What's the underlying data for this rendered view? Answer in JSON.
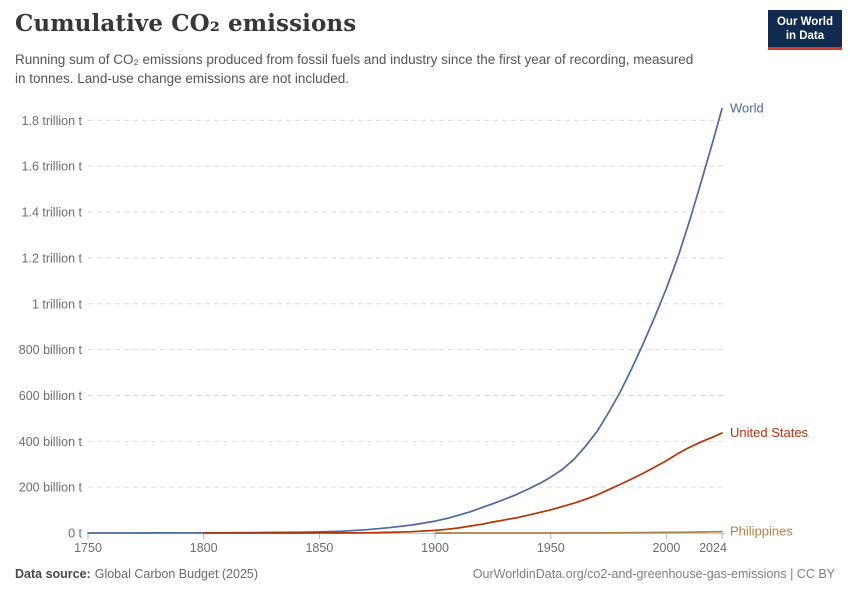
{
  "header": {
    "title": "Cumulative CO₂ emissions",
    "subtitle": "Running sum of CO₂ emissions produced from fossil fuels and industry since the first year of recording, measured in tonnes. Land-use change emissions are not included."
  },
  "logo": {
    "line1": "Our World",
    "line2": "in Data"
  },
  "footer": {
    "source_label": "Data source:",
    "source_text": "Global Carbon Budget (2025)",
    "attribution": "OurWorldinData.org/co2-and-greenhouse-gas-emissions | CC BY"
  },
  "chart_data": {
    "type": "line",
    "title": "Cumulative CO₂ emissions",
    "unit": "tonnes (values stored as billions of tonnes)",
    "xlim": [
      1750,
      2024
    ],
    "ylim_billion_t": [
      0,
      1900
    ],
    "grid": "dashed-horizontal",
    "legend_position": "end-of-line-labels",
    "axis_color": "#c8c8c8",
    "gridline_color": "#dcdcdc",
    "tick_label_color": "#6e6e6e",
    "x_ticks": [
      {
        "year": 1750,
        "label": "1750"
      },
      {
        "year": 1800,
        "label": "1800"
      },
      {
        "year": 1850,
        "label": "1850"
      },
      {
        "year": 1900,
        "label": "1900"
      },
      {
        "year": 1950,
        "label": "1950"
      },
      {
        "year": 2000,
        "label": "2000"
      },
      {
        "year": 2024,
        "label": "2024"
      }
    ],
    "y_ticks": [
      {
        "value_billion_t": 0,
        "label": "0 t"
      },
      {
        "value_billion_t": 200,
        "label": "200 billion t"
      },
      {
        "value_billion_t": 400,
        "label": "400 billion t"
      },
      {
        "value_billion_t": 600,
        "label": "600 billion t"
      },
      {
        "value_billion_t": 800,
        "label": "800 billion t"
      },
      {
        "value_billion_t": 1000,
        "label": "1 trillion t"
      },
      {
        "value_billion_t": 1200,
        "label": "1.2 trillion t"
      },
      {
        "value_billion_t": 1400,
        "label": "1.4 trillion t"
      },
      {
        "value_billion_t": 1600,
        "label": "1.6 trillion t"
      },
      {
        "value_billion_t": 1800,
        "label": "1.8 trillion t"
      }
    ],
    "series": [
      {
        "name": "World",
        "color": "#4c6a9c",
        "points_year_billion_t": [
          [
            1750,
            0
          ],
          [
            1760,
            0.1
          ],
          [
            1770,
            0.2
          ],
          [
            1780,
            0.35
          ],
          [
            1790,
            0.55
          ],
          [
            1800,
            0.9
          ],
          [
            1810,
            1.3
          ],
          [
            1820,
            1.8
          ],
          [
            1830,
            2.6
          ],
          [
            1840,
            3.6
          ],
          [
            1850,
            5
          ],
          [
            1860,
            8
          ],
          [
            1870,
            14
          ],
          [
            1880,
            23
          ],
          [
            1890,
            35
          ],
          [
            1900,
            52
          ],
          [
            1905,
            63
          ],
          [
            1910,
            77
          ],
          [
            1915,
            92
          ],
          [
            1920,
            110
          ],
          [
            1925,
            128
          ],
          [
            1930,
            147
          ],
          [
            1935,
            167
          ],
          [
            1940,
            190
          ],
          [
            1945,
            215
          ],
          [
            1950,
            244
          ],
          [
            1955,
            277
          ],
          [
            1960,
            321
          ],
          [
            1965,
            378
          ],
          [
            1970,
            443
          ],
          [
            1975,
            525
          ],
          [
            1980,
            615
          ],
          [
            1985,
            718
          ],
          [
            1990,
            827
          ],
          [
            1995,
            944
          ],
          [
            2000,
            1068
          ],
          [
            2005,
            1205
          ],
          [
            2010,
            1362
          ],
          [
            2015,
            1532
          ],
          [
            2020,
            1705
          ],
          [
            2024,
            1851
          ]
        ]
      },
      {
        "name": "United States",
        "color": "#b13507",
        "points_year_billion_t": [
          [
            1800,
            0
          ],
          [
            1810,
            0.02
          ],
          [
            1820,
            0.05
          ],
          [
            1830,
            0.1
          ],
          [
            1840,
            0.16
          ],
          [
            1850,
            0.25
          ],
          [
            1860,
            0.5
          ],
          [
            1870,
            1
          ],
          [
            1880,
            2.5
          ],
          [
            1890,
            5.5
          ],
          [
            1900,
            11.5
          ],
          [
            1905,
            16
          ],
          [
            1910,
            22
          ],
          [
            1915,
            30
          ],
          [
            1920,
            38
          ],
          [
            1925,
            48
          ],
          [
            1930,
            57
          ],
          [
            1935,
            66
          ],
          [
            1940,
            77
          ],
          [
            1945,
            89
          ],
          [
            1950,
            101
          ],
          [
            1955,
            115
          ],
          [
            1960,
            130
          ],
          [
            1965,
            147
          ],
          [
            1970,
            166
          ],
          [
            1975,
            189
          ],
          [
            1980,
            212
          ],
          [
            1985,
            236
          ],
          [
            1990,
            261
          ],
          [
            1995,
            288
          ],
          [
            2000,
            316
          ],
          [
            2005,
            347
          ],
          [
            2010,
            374
          ],
          [
            2015,
            398
          ],
          [
            2020,
            418
          ],
          [
            2024,
            436
          ]
        ]
      },
      {
        "name": "Philippines",
        "color": "#ad8348",
        "points_year_billion_t": [
          [
            1900,
            0
          ],
          [
            1925,
            0.05
          ],
          [
            1950,
            0.15
          ],
          [
            1960,
            0.3
          ],
          [
            1970,
            0.6
          ],
          [
            1980,
            1.1
          ],
          [
            1990,
            1.7
          ],
          [
            2000,
            2.6
          ],
          [
            2010,
            3.7
          ],
          [
            2015,
            4.4
          ],
          [
            2020,
            5.1
          ],
          [
            2024,
            5.9
          ]
        ]
      }
    ]
  }
}
